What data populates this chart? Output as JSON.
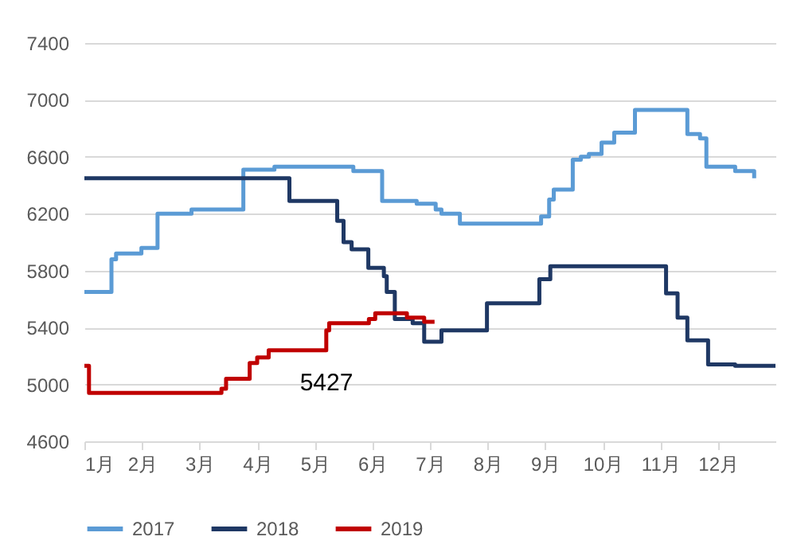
{
  "chart_data": {
    "type": "step",
    "xlim": [
      1,
      13
    ],
    "xticks": [
      {
        "value": 1,
        "label": "1月"
      },
      {
        "value": 2,
        "label": "2月"
      },
      {
        "value": 3,
        "label": "3月"
      },
      {
        "value": 4,
        "label": "4月"
      },
      {
        "value": 5,
        "label": "5月"
      },
      {
        "value": 6,
        "label": "6月"
      },
      {
        "value": 7,
        "label": "7月"
      },
      {
        "value": 8,
        "label": "8月"
      },
      {
        "value": 9,
        "label": "9月"
      },
      {
        "value": 10,
        "label": "10月"
      },
      {
        "value": 11,
        "label": "11月"
      },
      {
        "value": 12,
        "label": "12月"
      }
    ],
    "ylim": [
      4600,
      7400
    ],
    "yticks": [
      4600,
      5000,
      5400,
      5800,
      6200,
      6600,
      7000,
      7400
    ],
    "grid": "y",
    "legend": "bottom",
    "annotations": [
      "5427"
    ],
    "series": [
      {
        "name": "2017",
        "color": "#5b9bd5",
        "x": [
          1,
          1.47,
          1.55,
          1.99,
          2.27,
          2.86,
          3.76,
          4.3,
          5.67,
          6.17,
          6.77,
          7.1,
          7.2,
          7.52,
          8.93,
          9.07,
          9.15,
          9.48,
          9.62,
          9.76,
          9.98,
          10.2,
          10.56,
          11.47,
          11.69,
          11.8,
          12.3,
          12.63
        ],
        "values": [
          5650,
          5880,
          5920,
          5960,
          6200,
          6230,
          6510,
          6530,
          6500,
          6290,
          6270,
          6230,
          6200,
          6130,
          6180,
          6300,
          6370,
          6580,
          6600,
          6620,
          6700,
          6770,
          6930,
          6760,
          6730,
          6530,
          6500,
          6450
        ]
      },
      {
        "name": "2018",
        "color": "#1f3864",
        "x": [
          1,
          4.56,
          5.39,
          5.5,
          5.64,
          5.93,
          6.2,
          6.25,
          6.39,
          6.7,
          6.9,
          7.2,
          7.99,
          8.9,
          9.09,
          11.1,
          11.3,
          11.47,
          11.83,
          12.3,
          13
        ],
        "values": [
          6450,
          6290,
          6150,
          6000,
          5950,
          5820,
          5760,
          5650,
          5460,
          5430,
          5300,
          5380,
          5570,
          5740,
          5830,
          5640,
          5470,
          5310,
          5140,
          5130,
          5130
        ]
      },
      {
        "name": "2019",
        "color": "#c00000",
        "x": [
          1,
          1.08,
          3.38,
          3.46,
          3.87,
          4.0,
          4.2,
          5.2,
          5.25,
          5.94,
          6.05,
          6.6,
          6.9,
          7.08
        ],
        "values": [
          5130,
          4940,
          4970,
          5040,
          5150,
          5190,
          5240,
          5380,
          5430,
          5460,
          5500,
          5470,
          5440,
          5440
        ]
      }
    ]
  }
}
